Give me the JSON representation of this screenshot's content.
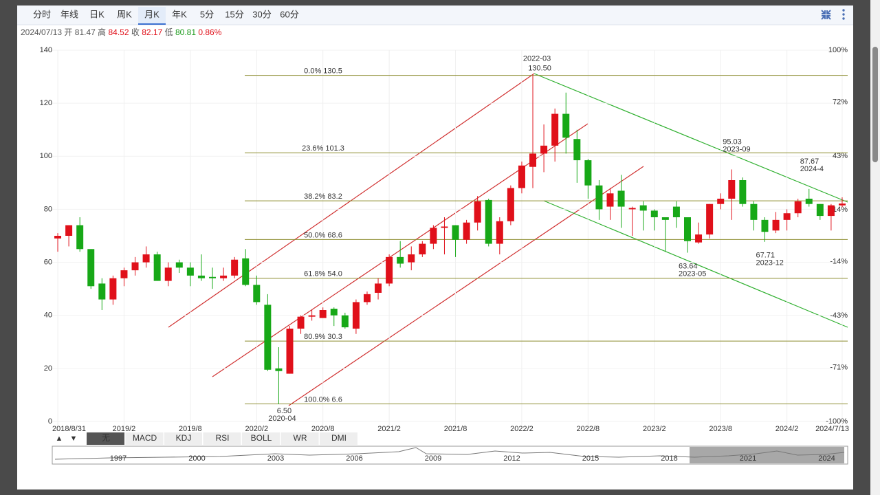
{
  "toolbar": {
    "tabs": [
      "分时",
      "年线",
      "日K",
      "周K",
      "月K",
      "年K",
      "5分",
      "15分",
      "30分",
      "60分"
    ],
    "active": 4
  },
  "quote": {
    "date": "2024/07/13",
    "items": [
      {
        "label": "开",
        "value": 81.47,
        "color": "#555555"
      },
      {
        "label": "高",
        "value": 84.52,
        "color": "#e0101a"
      },
      {
        "label": "收",
        "value": 82.17,
        "color": "#e0101a"
      },
      {
        "label": "低",
        "value": 80.81,
        "color": "#1a9a1a"
      }
    ],
    "change": "0.86%",
    "change_color": "#e0101a"
  },
  "chart_data": {
    "type": "candlestick",
    "categories": [
      "2018/8/31",
      null,
      null,
      null,
      null,
      null,
      "2019/2",
      null,
      null,
      null,
      null,
      null,
      "2019/8",
      null,
      null,
      null,
      null,
      null,
      "2020/2",
      null,
      null,
      null,
      null,
      null,
      "2020/8",
      null,
      null,
      null,
      null,
      null,
      "2021/2",
      null,
      null,
      null,
      null,
      null,
      "2021/8",
      null,
      null,
      null,
      null,
      null,
      "2022/2",
      null,
      null,
      null,
      null,
      null,
      "2022/8",
      null,
      null,
      null,
      null,
      null,
      "2023/2",
      null,
      null,
      null,
      null,
      null,
      "2023/8",
      null,
      null,
      null,
      null,
      null,
      "2024/2",
      null,
      null,
      null,
      null,
      "2024/7/13"
    ],
    "open": [
      69,
      70,
      74,
      65,
      52,
      46,
      54,
      57,
      60,
      63,
      53,
      60,
      58,
      55,
      54.5,
      54,
      55,
      61.5,
      51.5,
      44,
      20,
      18,
      35,
      39.5,
      39,
      42.5,
      40,
      35,
      45,
      48.5,
      52,
      62,
      60,
      63,
      67,
      73,
      74,
      68.5,
      75,
      83.5,
      67,
      75.5,
      88,
      96,
      101,
      104,
      116,
      106.5,
      98.5,
      89,
      81,
      87,
      80,
      81.5,
      79.5,
      77,
      81,
      77,
      67.5,
      70.5,
      82,
      84,
      91,
      82,
      76,
      72,
      76,
      78.5,
      84,
      82,
      77.5,
      81.47
    ],
    "high": [
      71,
      74,
      77,
      65,
      54,
      55,
      58,
      62,
      66,
      64,
      60,
      61,
      60,
      63,
      58,
      58,
      62,
      65,
      55,
      48,
      28,
      36,
      40,
      42,
      43,
      43,
      41,
      46,
      49,
      54,
      63,
      68,
      66,
      68,
      74,
      77,
      74,
      76,
      85,
      84,
      77,
      89,
      98,
      130.5,
      112,
      118,
      124,
      110,
      99,
      91,
      88,
      93,
      81,
      83,
      80,
      77,
      83,
      77,
      75,
      82,
      86,
      95.03,
      92,
      83,
      77,
      79,
      80,
      84,
      87.67,
      82,
      82,
      84.52
    ],
    "low": [
      64,
      66,
      64,
      50,
      42,
      44,
      51,
      55,
      58,
      53,
      51,
      56,
      51,
      53,
      50,
      53,
      54,
      51,
      44,
      19,
      6.5,
      18,
      33,
      38,
      39,
      36,
      35,
      33,
      44,
      46,
      51,
      58,
      57,
      62,
      65,
      63,
      62,
      67,
      72,
      66,
      63,
      74,
      86,
      88,
      94,
      98,
      101,
      90,
      84,
      76,
      76,
      73,
      70,
      72,
      72,
      64,
      73,
      63.64,
      67,
      69,
      80,
      76,
      81,
      72,
      67.71,
      71,
      72,
      77,
      81,
      76,
      72,
      80.81
    ],
    "close": [
      70,
      74,
      65,
      51,
      46,
      54,
      57,
      60,
      63,
      53,
      58,
      58,
      55,
      54,
      54,
      55,
      61,
      51.5,
      45,
      19.5,
      19,
      35,
      39.5,
      40,
      42,
      40,
      35.5,
      45,
      48,
      52,
      62,
      59.5,
      63,
      67,
      73,
      73.5,
      68.5,
      75,
      83,
      67,
      75.5,
      88,
      96.5,
      101,
      104,
      116,
      107,
      98.5,
      89,
      80,
      86,
      81,
      80.5,
      79.5,
      77,
      76,
      77,
      68,
      70.5,
      82,
      84,
      91,
      82,
      76,
      71.5,
      76,
      78.5,
      83,
      82,
      77.5,
      81.5,
      82.17
    ],
    "up_color": "#e0101a",
    "down_color": "#17a817",
    "ylim": [
      0,
      140
    ],
    "yticks": [
      0,
      20,
      40,
      60,
      80,
      100,
      120,
      140
    ],
    "y2lim": [
      -100,
      100
    ],
    "y2ticks": [
      {
        "value": -100,
        "label": "-100%"
      },
      {
        "value": -71,
        "label": "-71%"
      },
      {
        "value": -43,
        "label": "-43%"
      },
      {
        "value": -14,
        "label": "-14%"
      },
      {
        "value": 14,
        "label": "14%"
      },
      {
        "value": 43,
        "label": "43%"
      },
      {
        "value": 72,
        "label": "72%"
      },
      {
        "value": 100,
        "label": "100%"
      }
    ],
    "grid": true,
    "fib_color": "#8c8c2e",
    "fib_levels": [
      {
        "label": "0.0% 130.5",
        "value": 130.5
      },
      {
        "label": "23.6% 101.3",
        "value": 101.3
      },
      {
        "label": "38.2% 83.2",
        "value": 83.2
      },
      {
        "label": "50.0% 68.6",
        "value": 68.6
      },
      {
        "label": "61.8% 54.0",
        "value": 54.0
      },
      {
        "label": "80.9% 30.3",
        "value": 30.3
      },
      {
        "label": "100.0% 6.6",
        "value": 6.6
      }
    ],
    "annotations": [
      {
        "date": "2022-03",
        "value": 130.5,
        "label": "130.50"
      },
      {
        "date": "2020-04",
        "value": 6.5,
        "label": "6.50"
      },
      {
        "date": "2023-09",
        "value": 95.03,
        "label": "95.03"
      },
      {
        "date": "2024-4",
        "value": 87.67,
        "label": "87.67"
      },
      {
        "date": "2023-12",
        "value": 67.71,
        "label": "67.71"
      },
      {
        "date": "2023-05",
        "value": 63.64,
        "label": "63.64"
      }
    ]
  },
  "indicators": {
    "arrows": [
      "▲",
      "▼"
    ],
    "tabs": [
      "无",
      "MACD",
      "KDJ",
      "RSI",
      "BOLL",
      "WR",
      "DMI"
    ],
    "active": 0
  },
  "navigator": {
    "years": [
      1997,
      2000,
      2003,
      2006,
      2009,
      2012,
      2015,
      2018,
      2021,
      2024
    ]
  }
}
